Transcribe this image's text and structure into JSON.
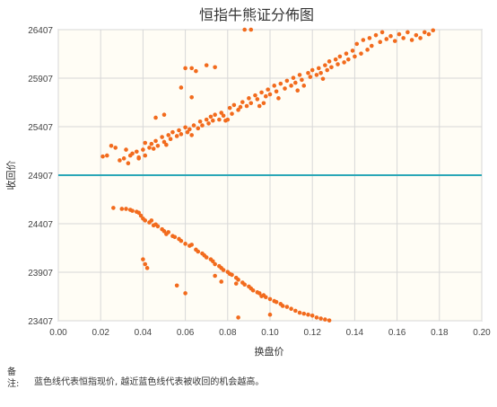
{
  "note": {
    "label": "备注:",
    "text": "蓝色线代表恒指现价, 越近蓝色线代表被收回的机会越高。"
  },
  "colors": {
    "background": "#fffdf5",
    "grid": "#d7d7d7",
    "points": "#f26b1d",
    "current_line": "#2aa7b7",
    "axis": "#999999"
  },
  "chart_data": {
    "type": "scatter",
    "title": "恒指牛熊证分佈图",
    "xlabel": "换盘价",
    "ylabel": "收回价",
    "xlim": [
      0,
      0.2
    ],
    "ylim": [
      23407,
      26407
    ],
    "x_ticks": [
      "0.00",
      "0.02",
      "0.04",
      "0.06",
      "0.08",
      "0.10",
      "0.12",
      "0.14",
      "0.16",
      "0.18",
      "0.20"
    ],
    "y_ticks": [
      "26407",
      "25907",
      "25407",
      "24907",
      "24407",
      "23907",
      "23407"
    ],
    "current_price_line": 24907,
    "series": [
      {
        "points": [
          [
            0.021,
            25100
          ],
          [
            0.023,
            25110
          ],
          [
            0.025,
            25210
          ],
          [
            0.027,
            25190
          ],
          [
            0.029,
            25060
          ],
          [
            0.031,
            25080
          ],
          [
            0.033,
            25030
          ],
          [
            0.034,
            25110
          ],
          [
            0.035,
            25130
          ],
          [
            0.037,
            25150
          ],
          [
            0.038,
            25080
          ],
          [
            0.04,
            25170
          ],
          [
            0.041,
            25110
          ],
          [
            0.041,
            25240
          ],
          [
            0.043,
            25190
          ],
          [
            0.044,
            25230
          ],
          [
            0.045,
            25180
          ],
          [
            0.046,
            25260
          ],
          [
            0.047,
            25210
          ],
          [
            0.049,
            25300
          ],
          [
            0.05,
            25250
          ],
          [
            0.051,
            25220
          ],
          [
            0.052,
            25320
          ],
          [
            0.053,
            25280
          ],
          [
            0.054,
            25350
          ],
          [
            0.056,
            25310
          ],
          [
            0.057,
            25370
          ],
          [
            0.058,
            25330
          ],
          [
            0.06,
            25400
          ],
          [
            0.061,
            25350
          ],
          [
            0.062,
            25380
          ],
          [
            0.063,
            25320
          ],
          [
            0.064,
            25420
          ],
          [
            0.066,
            25390
          ],
          [
            0.067,
            25460
          ],
          [
            0.068,
            25420
          ],
          [
            0.07,
            25480
          ],
          [
            0.071,
            25440
          ],
          [
            0.072,
            25510
          ],
          [
            0.073,
            25470
          ],
          [
            0.074,
            25530
          ],
          [
            0.076,
            25480
          ],
          [
            0.077,
            25550
          ],
          [
            0.078,
            25520
          ],
          [
            0.079,
            25470
          ],
          [
            0.081,
            25600
          ],
          [
            0.082,
            25540
          ],
          [
            0.083,
            25630
          ],
          [
            0.085,
            25580
          ],
          [
            0.086,
            25610
          ],
          [
            0.087,
            25660
          ],
          [
            0.089,
            25620
          ],
          [
            0.09,
            25700
          ],
          [
            0.091,
            25650
          ],
          [
            0.093,
            25730
          ],
          [
            0.094,
            25690
          ],
          [
            0.095,
            25620
          ],
          [
            0.096,
            25760
          ],
          [
            0.098,
            25720
          ],
          [
            0.099,
            25790
          ],
          [
            0.1,
            25740
          ],
          [
            0.102,
            25830
          ],
          [
            0.103,
            25770
          ],
          [
            0.104,
            25700
          ],
          [
            0.105,
            25850
          ],
          [
            0.107,
            25800
          ],
          [
            0.108,
            25880
          ],
          [
            0.11,
            25830
          ],
          [
            0.111,
            25910
          ],
          [
            0.112,
            25860
          ],
          [
            0.114,
            25940
          ],
          [
            0.115,
            25890
          ],
          [
            0.116,
            25830
          ],
          [
            0.118,
            25960
          ],
          [
            0.119,
            25920
          ],
          [
            0.12,
            25990
          ],
          [
            0.122,
            25940
          ],
          [
            0.123,
            26010
          ],
          [
            0.124,
            25960
          ],
          [
            0.126,
            26040
          ],
          [
            0.127,
            25990
          ],
          [
            0.128,
            26080
          ],
          [
            0.129,
            26020
          ],
          [
            0.131,
            26100
          ],
          [
            0.132,
            26050
          ],
          [
            0.133,
            26130
          ],
          [
            0.135,
            26070
          ],
          [
            0.136,
            26160
          ],
          [
            0.137,
            26100
          ],
          [
            0.139,
            26190
          ],
          [
            0.14,
            26130
          ],
          [
            0.141,
            26260
          ],
          [
            0.143,
            26160
          ],
          [
            0.144,
            26300
          ],
          [
            0.146,
            26200
          ],
          [
            0.147,
            26320
          ],
          [
            0.148,
            26240
          ],
          [
            0.15,
            26350
          ],
          [
            0.152,
            26280
          ],
          [
            0.153,
            26380
          ],
          [
            0.155,
            26310
          ],
          [
            0.157,
            26340
          ],
          [
            0.159,
            26290
          ],
          [
            0.161,
            26360
          ],
          [
            0.163,
            26320
          ],
          [
            0.165,
            26380
          ],
          [
            0.167,
            26300
          ],
          [
            0.169,
            26350
          ],
          [
            0.171,
            26320
          ],
          [
            0.173,
            26380
          ],
          [
            0.175,
            26360
          ],
          [
            0.177,
            26400
          ],
          [
            0.06,
            26010
          ],
          [
            0.063,
            26010
          ],
          [
            0.065,
            25980
          ],
          [
            0.07,
            26040
          ],
          [
            0.074,
            26020
          ],
          [
            0.058,
            25810
          ],
          [
            0.046,
            25500
          ],
          [
            0.05,
            25530
          ],
          [
            0.063,
            25710
          ],
          [
            0.088,
            26407
          ],
          [
            0.091,
            26407
          ],
          [
            0.032,
            25170
          ],
          [
            0.038,
            25090
          ],
          [
            0.08,
            25480
          ],
          [
            0.097,
            25650
          ],
          [
            0.113,
            25780
          ],
          [
            0.125,
            25900
          ]
        ]
      },
      {
        "points": [
          [
            0.026,
            24570
          ],
          [
            0.03,
            24560
          ],
          [
            0.032,
            24560
          ],
          [
            0.034,
            24550
          ],
          [
            0.035,
            24540
          ],
          [
            0.037,
            24530
          ],
          [
            0.038,
            24520
          ],
          [
            0.039,
            24490
          ],
          [
            0.04,
            24460
          ],
          [
            0.041,
            24440
          ],
          [
            0.043,
            24420
          ],
          [
            0.044,
            24440
          ],
          [
            0.045,
            24390
          ],
          [
            0.046,
            24400
          ],
          [
            0.047,
            24380
          ],
          [
            0.049,
            24350
          ],
          [
            0.05,
            24330
          ],
          [
            0.051,
            24300
          ],
          [
            0.052,
            24320
          ],
          [
            0.054,
            24280
          ],
          [
            0.055,
            24270
          ],
          [
            0.057,
            24250
          ],
          [
            0.058,
            24230
          ],
          [
            0.06,
            24200
          ],
          [
            0.062,
            24180
          ],
          [
            0.063,
            24190
          ],
          [
            0.065,
            24140
          ],
          [
            0.066,
            24120
          ],
          [
            0.068,
            24100
          ],
          [
            0.069,
            24080
          ],
          [
            0.07,
            24060
          ],
          [
            0.072,
            24040
          ],
          [
            0.073,
            24020
          ],
          [
            0.074,
            23990
          ],
          [
            0.076,
            23970
          ],
          [
            0.077,
            23950
          ],
          [
            0.078,
            23930
          ],
          [
            0.08,
            23910
          ],
          [
            0.081,
            23890
          ],
          [
            0.082,
            23880
          ],
          [
            0.084,
            23850
          ],
          [
            0.085,
            23830
          ],
          [
            0.087,
            23800
          ],
          [
            0.088,
            23780
          ],
          [
            0.09,
            23760
          ],
          [
            0.091,
            23740
          ],
          [
            0.092,
            23720
          ],
          [
            0.094,
            23700
          ],
          [
            0.095,
            23690
          ],
          [
            0.097,
            23670
          ],
          [
            0.098,
            23650
          ],
          [
            0.1,
            23630
          ],
          [
            0.102,
            23610
          ],
          [
            0.103,
            23600
          ],
          [
            0.105,
            23580
          ],
          [
            0.106,
            23560
          ],
          [
            0.108,
            23550
          ],
          [
            0.11,
            23530
          ],
          [
            0.112,
            23510
          ],
          [
            0.114,
            23490
          ],
          [
            0.116,
            23480
          ],
          [
            0.118,
            23470
          ],
          [
            0.12,
            23460
          ],
          [
            0.122,
            23440
          ],
          [
            0.124,
            23430
          ],
          [
            0.126,
            23420
          ],
          [
            0.128,
            23410
          ],
          [
            0.04,
            24040
          ],
          [
            0.041,
            23990
          ],
          [
            0.042,
            23950
          ],
          [
            0.056,
            23770
          ],
          [
            0.06,
            23690
          ],
          [
            0.074,
            23870
          ],
          [
            0.077,
            23810
          ],
          [
            0.084,
            23790
          ],
          [
            0.096,
            23660
          ],
          [
            0.085,
            23440
          ],
          [
            0.1,
            23470
          ]
        ]
      }
    ]
  }
}
